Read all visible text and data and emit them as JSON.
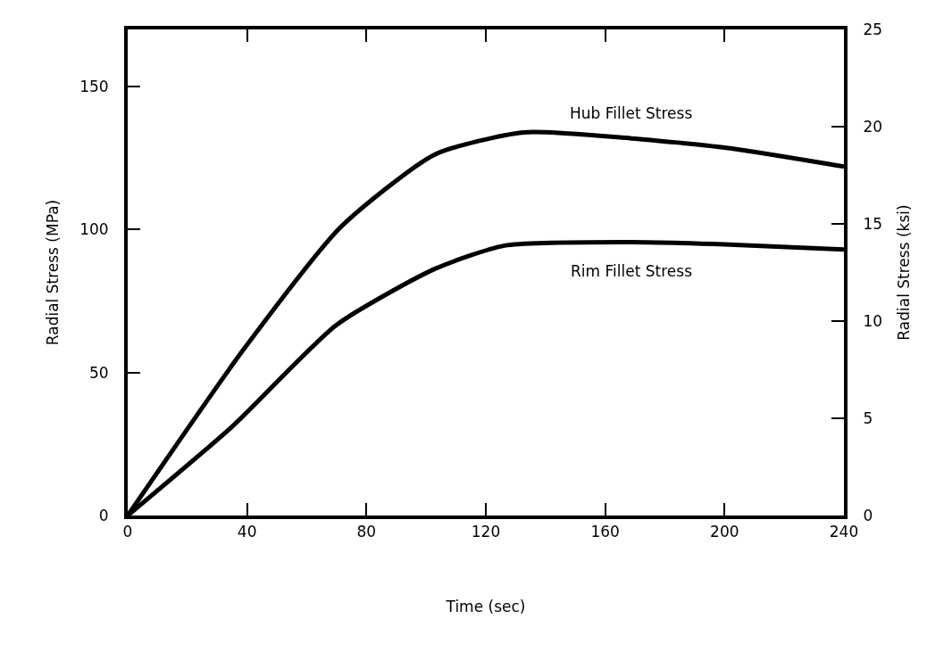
{
  "chart_data": {
    "type": "line",
    "xlabel": "Time (sec)",
    "ylabel": "Radial Stress (MPa)",
    "y2label": "Radial Stress (ksi)",
    "x": [
      0,
      38.5,
      71.4,
      102.8,
      132.6,
      168.7,
      200,
      234.6,
      240
    ],
    "series": [
      {
        "name": "Hub Fillet Stress",
        "color": "#000000",
        "values": [
          0,
          57.6,
          100.9,
          126.2,
          134,
          131.9,
          128.7,
          123,
          122
        ]
      },
      {
        "name": "Rim Fillet Stress",
        "color": "#000000",
        "x": [
          0,
          35.3,
          69.9,
          102.8,
          126.3,
          168.8,
          200,
          240
        ],
        "values": [
          0,
          31.4,
          66.6,
          86.2,
          94.4,
          95.6,
          94.8,
          93
        ]
      }
    ],
    "xlim": [
      0,
      240
    ],
    "xticks": [
      0,
      40,
      80,
      120,
      160,
      200,
      240
    ],
    "ylim": [
      0,
      170
    ],
    "yticks": [
      0,
      50,
      100,
      150
    ],
    "y2lim": [
      0,
      25
    ],
    "y2ticks": [
      0,
      5,
      10,
      15,
      20,
      25
    ],
    "legend": false,
    "line_style": "solid",
    "marker": "none"
  }
}
